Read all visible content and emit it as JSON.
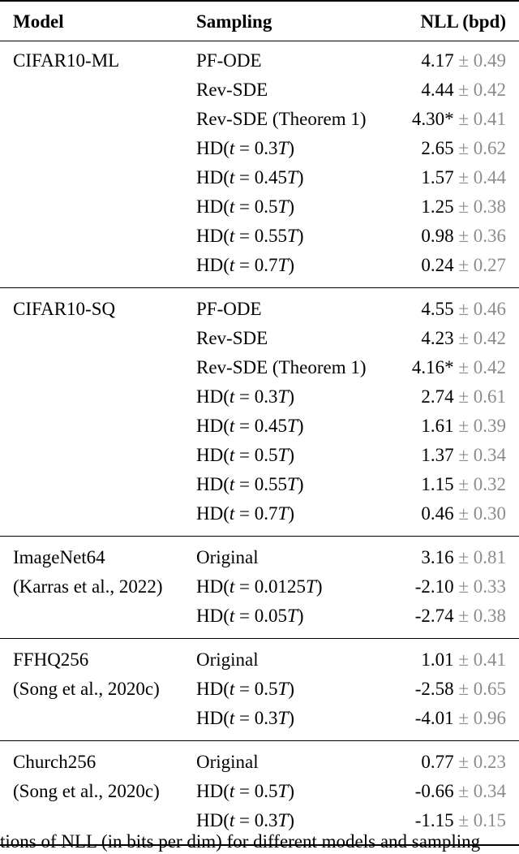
{
  "header": {
    "model": "Model",
    "sampling": "Sampling",
    "nll": "NLL (bpd)"
  },
  "pm": "±",
  "groups": [
    {
      "model": [
        "CIFAR10-ML"
      ],
      "rows": [
        {
          "sampling": "PF-ODE",
          "mean": "4.17",
          "std": "0.49"
        },
        {
          "sampling": "Rev-SDE",
          "mean": "4.44",
          "std": "0.42"
        },
        {
          "sampling": "Rev-SDE (Theorem 1)",
          "mean": "4.30*",
          "std": "0.41"
        },
        {
          "sampling": "HD(t = 0.3T)",
          "mean": "2.65",
          "std": "0.62"
        },
        {
          "sampling": "HD(t = 0.45T)",
          "mean": "1.57",
          "std": "0.44"
        },
        {
          "sampling": "HD(t = 0.5T)",
          "mean": "1.25",
          "std": "0.38"
        },
        {
          "sampling": "HD(t = 0.55T)",
          "mean": "0.98",
          "std": "0.36"
        },
        {
          "sampling": "HD(t = 0.7T)",
          "mean": "0.24",
          "std": "0.27"
        }
      ]
    },
    {
      "model": [
        "CIFAR10-SQ"
      ],
      "rows": [
        {
          "sampling": "PF-ODE",
          "mean": "4.55",
          "std": "0.46"
        },
        {
          "sampling": "Rev-SDE",
          "mean": "4.23",
          "std": "0.42"
        },
        {
          "sampling": "Rev-SDE (Theorem 1)",
          "mean": "4.16*",
          "std": "0.42"
        },
        {
          "sampling": "HD(t = 0.3T)",
          "mean": "2.74",
          "std": "0.61"
        },
        {
          "sampling": "HD(t = 0.45T)",
          "mean": "1.61",
          "std": "0.39"
        },
        {
          "sampling": "HD(t = 0.5T)",
          "mean": "1.37",
          "std": "0.34"
        },
        {
          "sampling": "HD(t = 0.55T)",
          "mean": "1.15",
          "std": "0.32"
        },
        {
          "sampling": "HD(t = 0.7T)",
          "mean": "0.46",
          "std": "0.30"
        }
      ]
    },
    {
      "model": [
        "ImageNet64",
        "(Karras et al., 2022)"
      ],
      "rows": [
        {
          "sampling": "Original",
          "mean": "3.16",
          "std": "0.81"
        },
        {
          "sampling": "HD(t = 0.0125T)",
          "mean": "-2.10",
          "std": "0.33"
        },
        {
          "sampling": "HD(t = 0.05T)",
          "mean": "-2.74",
          "std": "0.38"
        }
      ]
    },
    {
      "model": [
        "FFHQ256",
        "(Song et al., 2020c)"
      ],
      "rows": [
        {
          "sampling": "Original",
          "mean": "1.01",
          "std": "0.41"
        },
        {
          "sampling": "HD(t = 0.5T)",
          "mean": "-2.58",
          "std": "0.65"
        },
        {
          "sampling": "HD(t = 0.3T)",
          "mean": "-4.01",
          "std": "0.96"
        }
      ]
    },
    {
      "model": [
        "Church256",
        "(Song et al., 2020c)"
      ],
      "rows": [
        {
          "sampling": "Original",
          "mean": "0.77",
          "std": "0.23"
        },
        {
          "sampling": "HD(t = 0.5T)",
          "mean": "-0.66",
          "std": "0.34"
        },
        {
          "sampling": "HD(t = 0.3T)",
          "mean": "-1.15",
          "std": "0.15"
        }
      ]
    }
  ],
  "caption": "tions of NLL (in bits per dim) for different models and sampling"
}
